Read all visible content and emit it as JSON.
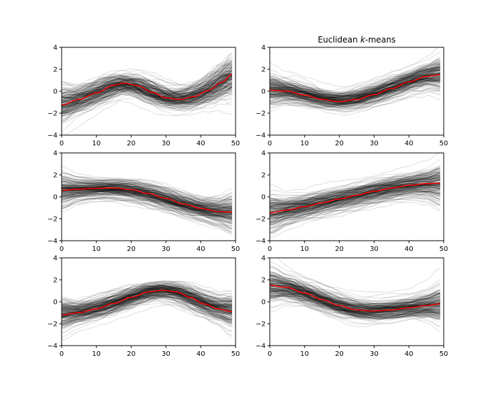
{
  "figure_title": "Euclidean k-means",
  "chart_data": [
    {
      "type": "line",
      "panel": "row1-col1",
      "title": "",
      "xlim": [
        0,
        50
      ],
      "ylim": [
        -4,
        4
      ],
      "xticks": [
        0,
        10,
        20,
        30,
        40,
        50
      ],
      "yticks": [
        -4,
        -2,
        0,
        2,
        4
      ],
      "series_count_approx": 200,
      "center": [
        [
          0,
          -1.25
        ],
        [
          5,
          -0.75
        ],
        [
          10,
          -0.15
        ],
        [
          15,
          0.55
        ],
        [
          18,
          0.75
        ],
        [
          22,
          0.5
        ],
        [
          26,
          -0.1
        ],
        [
          30,
          -0.6
        ],
        [
          34,
          -0.75
        ],
        [
          38,
          -0.5
        ],
        [
          42,
          0.05
        ],
        [
          46,
          0.8
        ],
        [
          49,
          1.55
        ]
      ],
      "band_halfwidth": [
        [
          0,
          1.6
        ],
        [
          5,
          1.1
        ],
        [
          10,
          0.95
        ],
        [
          20,
          0.9
        ],
        [
          30,
          0.9
        ],
        [
          40,
          0.95
        ],
        [
          45,
          1.2
        ],
        [
          49,
          1.7
        ]
      ],
      "series_color": "#000000",
      "center_color": "#ff0000"
    },
    {
      "type": "line",
      "panel": "row1-col2",
      "title": "Euclidean k-means",
      "xlim": [
        0,
        50
      ],
      "ylim": [
        -4,
        4
      ],
      "xticks": [
        0,
        10,
        20,
        30,
        40,
        50
      ],
      "yticks": [
        -4,
        -2,
        0,
        2,
        4
      ],
      "series_count_approx": 200,
      "center": [
        [
          0,
          0.1
        ],
        [
          5,
          0.0
        ],
        [
          10,
          -0.35
        ],
        [
          15,
          -0.75
        ],
        [
          20,
          -0.95
        ],
        [
          25,
          -0.75
        ],
        [
          30,
          -0.3
        ],
        [
          35,
          0.25
        ],
        [
          40,
          0.85
        ],
        [
          45,
          1.35
        ],
        [
          49,
          1.5
        ]
      ],
      "band_halfwidth": [
        [
          0,
          1.6
        ],
        [
          5,
          1.1
        ],
        [
          10,
          0.95
        ],
        [
          20,
          0.9
        ],
        [
          30,
          0.9
        ],
        [
          40,
          0.95
        ],
        [
          45,
          1.2
        ],
        [
          49,
          1.7
        ]
      ],
      "series_color": "#000000",
      "center_color": "#ff0000"
    },
    {
      "type": "line",
      "panel": "row2-col1",
      "title": "",
      "xlim": [
        0,
        50
      ],
      "ylim": [
        -4,
        4
      ],
      "xticks": [
        0,
        10,
        20,
        30,
        40,
        50
      ],
      "yticks": [
        -4,
        -2,
        0,
        2,
        4
      ],
      "series_count_approx": 200,
      "center": [
        [
          0,
          0.6
        ],
        [
          5,
          0.7
        ],
        [
          10,
          0.78
        ],
        [
          15,
          0.8
        ],
        [
          20,
          0.65
        ],
        [
          25,
          0.3
        ],
        [
          30,
          -0.15
        ],
        [
          35,
          -0.65
        ],
        [
          40,
          -1.05
        ],
        [
          45,
          -1.35
        ],
        [
          49,
          -1.4
        ]
      ],
      "band_halfwidth": [
        [
          0,
          1.6
        ],
        [
          5,
          1.1
        ],
        [
          10,
          0.95
        ],
        [
          20,
          0.9
        ],
        [
          30,
          0.9
        ],
        [
          40,
          0.95
        ],
        [
          45,
          1.2
        ],
        [
          49,
          1.7
        ]
      ],
      "series_color": "#000000",
      "center_color": "#ff0000"
    },
    {
      "type": "line",
      "panel": "row2-col2",
      "title": "",
      "xlim": [
        0,
        50
      ],
      "ylim": [
        -4,
        4
      ],
      "xticks": [
        0,
        10,
        20,
        30,
        40,
        50
      ],
      "yticks": [
        -4,
        -2,
        0,
        2,
        4
      ],
      "series_count_approx": 200,
      "center": [
        [
          0,
          -1.45
        ],
        [
          5,
          -1.2
        ],
        [
          10,
          -0.9
        ],
        [
          15,
          -0.55
        ],
        [
          20,
          -0.2
        ],
        [
          25,
          0.15
        ],
        [
          30,
          0.5
        ],
        [
          35,
          0.8
        ],
        [
          40,
          1.05
        ],
        [
          45,
          1.2
        ],
        [
          49,
          1.25
        ]
      ],
      "band_halfwidth": [
        [
          0,
          1.6
        ],
        [
          5,
          1.1
        ],
        [
          10,
          0.95
        ],
        [
          20,
          0.9
        ],
        [
          30,
          0.9
        ],
        [
          40,
          0.95
        ],
        [
          45,
          1.2
        ],
        [
          49,
          1.7
        ]
      ],
      "series_color": "#000000",
      "center_color": "#ff0000"
    },
    {
      "type": "line",
      "panel": "row3-col1",
      "title": "",
      "xlim": [
        0,
        50
      ],
      "ylim": [
        -4,
        4
      ],
      "xticks": [
        0,
        10,
        20,
        30,
        40,
        50
      ],
      "yticks": [
        -4,
        -2,
        0,
        2,
        4
      ],
      "series_count_approx": 200,
      "center": [
        [
          0,
          -1.2
        ],
        [
          5,
          -1.0
        ],
        [
          10,
          -0.65
        ],
        [
          15,
          -0.15
        ],
        [
          20,
          0.4
        ],
        [
          25,
          0.9
        ],
        [
          29,
          1.05
        ],
        [
          33,
          0.9
        ],
        [
          37,
          0.4
        ],
        [
          41,
          -0.2
        ],
        [
          45,
          -0.65
        ],
        [
          49,
          -0.9
        ]
      ],
      "band_halfwidth": [
        [
          0,
          1.6
        ],
        [
          5,
          1.1
        ],
        [
          10,
          0.95
        ],
        [
          20,
          0.9
        ],
        [
          30,
          0.9
        ],
        [
          40,
          0.95
        ],
        [
          45,
          1.2
        ],
        [
          49,
          1.7
        ]
      ],
      "series_color": "#000000",
      "center_color": "#ff0000"
    },
    {
      "type": "line",
      "panel": "row3-col2",
      "title": "",
      "xlim": [
        0,
        50
      ],
      "ylim": [
        -4,
        4
      ],
      "xticks": [
        0,
        10,
        20,
        30,
        40,
        50
      ],
      "yticks": [
        -4,
        -2,
        0,
        2,
        4
      ],
      "series_count_approx": 200,
      "center": [
        [
          0,
          1.5
        ],
        [
          5,
          1.3
        ],
        [
          10,
          0.8
        ],
        [
          15,
          0.2
        ],
        [
          20,
          -0.35
        ],
        [
          25,
          -0.75
        ],
        [
          30,
          -0.85
        ],
        [
          35,
          -0.75
        ],
        [
          40,
          -0.55
        ],
        [
          45,
          -0.35
        ],
        [
          49,
          -0.2
        ]
      ],
      "band_halfwidth": [
        [
          0,
          1.6
        ],
        [
          5,
          1.1
        ],
        [
          10,
          0.95
        ],
        [
          20,
          0.9
        ],
        [
          30,
          0.9
        ],
        [
          40,
          0.95
        ],
        [
          45,
          1.2
        ],
        [
          49,
          1.7
        ]
      ],
      "series_color": "#000000",
      "center_color": "#ff0000"
    }
  ]
}
